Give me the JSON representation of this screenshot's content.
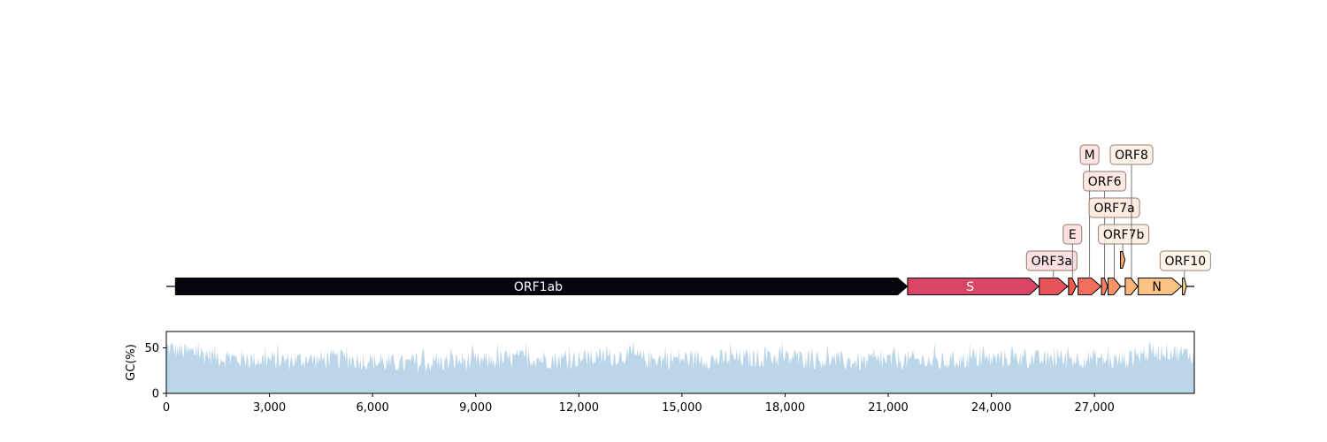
{
  "chart_data": [
    {
      "type": "gene_map",
      "xlim": [
        0,
        29903
      ],
      "genes": [
        {
          "name": "ORF1ab",
          "start": 266,
          "end": 21555,
          "color": "#05050f",
          "label_inside": true,
          "label_color": "#ffffff"
        },
        {
          "name": "S",
          "start": 21563,
          "end": 25384,
          "color": "#da4666",
          "label_inside": true,
          "label_color": "#ffffff"
        },
        {
          "name": "ORF3a",
          "start": 25393,
          "end": 26220,
          "color": "#e6525a",
          "label_inside": false
        },
        {
          "name": "E",
          "start": 26245,
          "end": 26472,
          "color": "#ee5c4c",
          "label_inside": false
        },
        {
          "name": "M",
          "start": 26523,
          "end": 27191,
          "color": "#f16f5b",
          "label_inside": false
        },
        {
          "name": "ORF6",
          "start": 27202,
          "end": 27387,
          "color": "#f6805e",
          "label_inside": false
        },
        {
          "name": "ORF7a",
          "start": 27394,
          "end": 27759,
          "color": "#f79466",
          "label_inside": false
        },
        {
          "name": "ORF7b",
          "start": 27756,
          "end": 27887,
          "color": "#f9a570",
          "label_inside": false
        },
        {
          "name": "ORF8",
          "start": 27894,
          "end": 28259,
          "color": "#fbb379",
          "label_inside": false
        },
        {
          "name": "N",
          "start": 28274,
          "end": 29533,
          "color": "#fdc385",
          "label_inside": true,
          "label_color": "#000000"
        },
        {
          "name": "ORF10",
          "start": 29558,
          "end": 29674,
          "color": "#fdd091",
          "label_inside": false
        }
      ]
    },
    {
      "type": "area",
      "ylabel": "GC(%)",
      "xlim": [
        0,
        29903
      ],
      "ylim": [
        0,
        68
      ],
      "yticks": [
        "0",
        "50"
      ],
      "xticks": [
        "0",
        "3,000",
        "6,000",
        "9,000",
        "12,000",
        "15,000",
        "18,000",
        "21,000",
        "24,000",
        "27,000"
      ],
      "xtick_values": [
        0,
        3000,
        6000,
        9000,
        12000,
        15000,
        18000,
        21000,
        24000,
        27000
      ],
      "fill_color": "#bcd6e9",
      "gc_profile": [
        [
          0,
          50
        ],
        [
          500,
          46
        ],
        [
          1000,
          44
        ],
        [
          1500,
          40
        ],
        [
          2000,
          38
        ],
        [
          2500,
          37
        ],
        [
          3000,
          37
        ],
        [
          3500,
          36
        ],
        [
          4000,
          37
        ],
        [
          4500,
          37
        ],
        [
          5000,
          38
        ],
        [
          5500,
          37
        ],
        [
          6000,
          35
        ],
        [
          6500,
          33
        ],
        [
          7000,
          32
        ],
        [
          7500,
          33
        ],
        [
          8000,
          34
        ],
        [
          8500,
          36
        ],
        [
          9000,
          35
        ],
        [
          9500,
          36
        ],
        [
          10000,
          38
        ],
        [
          10500,
          39
        ],
        [
          11000,
          38
        ],
        [
          11500,
          37
        ],
        [
          12000,
          38
        ],
        [
          12500,
          39
        ],
        [
          13000,
          40
        ],
        [
          13500,
          42
        ],
        [
          14000,
          37
        ],
        [
          14500,
          38
        ],
        [
          15000,
          38
        ],
        [
          15500,
          38
        ],
        [
          16000,
          37
        ],
        [
          16500,
          39
        ],
        [
          17000,
          38
        ],
        [
          17500,
          40
        ],
        [
          18000,
          39
        ],
        [
          18500,
          38
        ],
        [
          19000,
          37
        ],
        [
          19500,
          36
        ],
        [
          20000,
          35
        ],
        [
          20500,
          34
        ],
        [
          21000,
          36
        ],
        [
          21500,
          37
        ],
        [
          22000,
          36
        ],
        [
          22500,
          34
        ],
        [
          23000,
          36
        ],
        [
          23500,
          38
        ],
        [
          24000,
          37
        ],
        [
          24500,
          39
        ],
        [
          25000,
          38
        ],
        [
          25500,
          37
        ],
        [
          26000,
          37
        ],
        [
          26500,
          38
        ],
        [
          27000,
          39
        ],
        [
          27500,
          35
        ],
        [
          28000,
          38
        ],
        [
          28500,
          45
        ],
        [
          29000,
          47
        ],
        [
          29500,
          44
        ],
        [
          29903,
          42
        ]
      ]
    }
  ]
}
